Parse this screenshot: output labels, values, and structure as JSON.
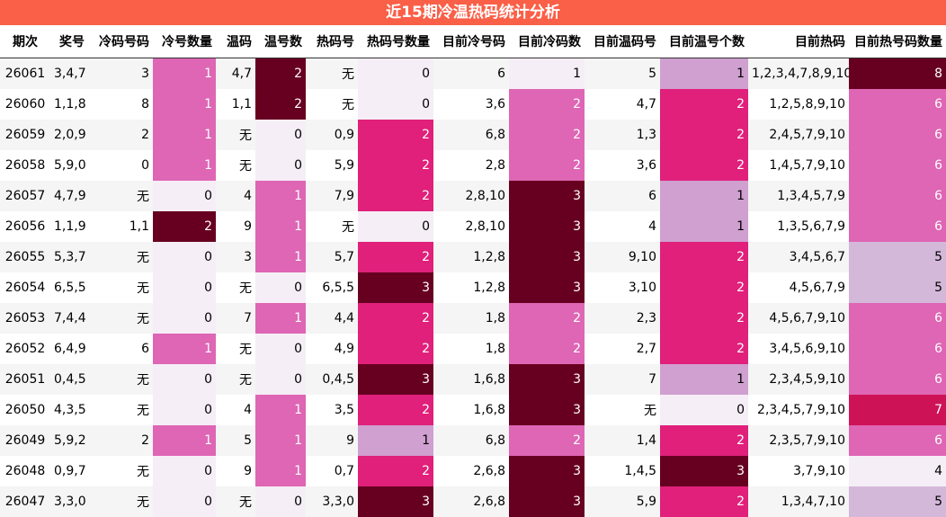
{
  "title": "近15期冷温热码统计分析",
  "columns": [
    "期次",
    "奖号",
    "冷码号码",
    "冷号数量",
    "温码",
    "温号数",
    "热码号",
    "热码号数量",
    "目前冷号码",
    "目前冷码数",
    "目前温码号",
    "目前温号个数",
    "目前热码",
    "目前热号码数量"
  ],
  "rows": [
    [
      "26061",
      "3,4,7",
      "3",
      "1",
      "4,7",
      "2",
      "无",
      "0",
      "6",
      "1",
      "5",
      "1",
      "1,2,3,4,7,8,9,10",
      "8"
    ],
    [
      "26060",
      "1,1,8",
      "8",
      "1",
      "1,1",
      "2",
      "无",
      "0",
      "3,6",
      "2",
      "4,7",
      "2",
      "1,2,5,8,9,10",
      "6"
    ],
    [
      "26059",
      "2,0,9",
      "2",
      "1",
      "无",
      "0",
      "0,9",
      "2",
      "6,8",
      "2",
      "1,3",
      "2",
      "2,4,5,7,9,10",
      "6"
    ],
    [
      "26058",
      "5,9,0",
      "0",
      "1",
      "无",
      "0",
      "5,9",
      "2",
      "2,8",
      "2",
      "3,6",
      "2",
      "1,4,5,7,9,10",
      "6"
    ],
    [
      "26057",
      "4,7,9",
      "无",
      "0",
      "4",
      "1",
      "7,9",
      "2",
      "2,8,10",
      "3",
      "6",
      "1",
      "1,3,4,5,7,9",
      "6"
    ],
    [
      "26056",
      "1,1,9",
      "1,1",
      "2",
      "9",
      "1",
      "无",
      "0",
      "2,8,10",
      "3",
      "4",
      "1",
      "1,3,5,6,7,9",
      "6"
    ],
    [
      "26055",
      "5,3,7",
      "无",
      "0",
      "3",
      "1",
      "5,7",
      "2",
      "1,2,8",
      "3",
      "9,10",
      "2",
      "3,4,5,6,7",
      "5"
    ],
    [
      "26054",
      "6,5,5",
      "无",
      "0",
      "无",
      "0",
      "6,5,5",
      "3",
      "1,2,8",
      "3",
      "3,10",
      "2",
      "4,5,6,7,9",
      "5"
    ],
    [
      "26053",
      "7,4,4",
      "无",
      "0",
      "7",
      "1",
      "4,4",
      "2",
      "1,8",
      "2",
      "2,3",
      "2",
      "4,5,6,7,9,10",
      "6"
    ],
    [
      "26052",
      "6,4,9",
      "6",
      "1",
      "无",
      "0",
      "4,9",
      "2",
      "1,8",
      "2",
      "2,7",
      "2",
      "3,4,5,6,9,10",
      "6"
    ],
    [
      "26051",
      "0,4,5",
      "无",
      "0",
      "无",
      "0",
      "0,4,5",
      "3",
      "1,6,8",
      "3",
      "7",
      "1",
      "2,3,4,5,9,10",
      "6"
    ],
    [
      "26050",
      "4,3,5",
      "无",
      "0",
      "4",
      "1",
      "3,5",
      "2",
      "1,6,8",
      "3",
      "无",
      "0",
      "2,3,4,5,7,9,10",
      "7"
    ],
    [
      "26049",
      "5,9,2",
      "2",
      "1",
      "5",
      "1",
      "9",
      "1",
      "6,8",
      "2",
      "1,4",
      "2",
      "2,3,5,7,9,10",
      "6"
    ],
    [
      "26048",
      "0,9,7",
      "无",
      "0",
      "9",
      "1",
      "0,7",
      "2",
      "2,6,8",
      "3",
      "1,4,5",
      "3",
      "3,7,9,10",
      "4"
    ],
    [
      "26047",
      "3,3,0",
      "无",
      "0",
      "无",
      "0",
      "3,3,0",
      "3",
      "2,6,8",
      "3",
      "5,9",
      "2",
      "1,3,4,7,10",
      "5"
    ]
  ]
}
